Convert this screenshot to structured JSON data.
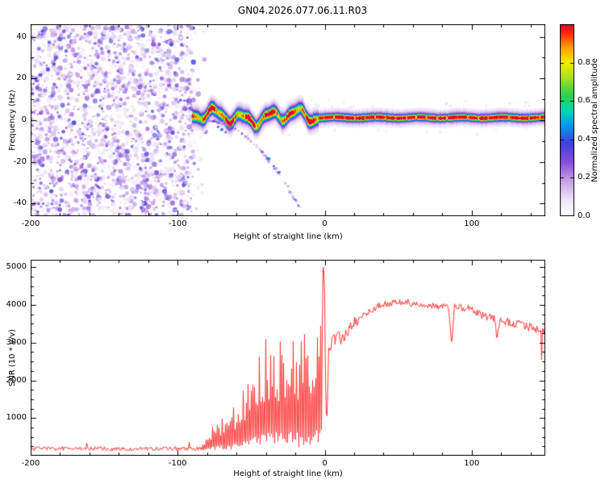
{
  "title": "GN04.2026.077.06.11.R03",
  "chart_data": [
    {
      "type": "heatmap",
      "panel": "spectrogram",
      "xlabel": "Height of straight line (km)",
      "ylabel": "Frequency (Hz)",
      "xlim": [
        -200,
        150
      ],
      "ylim": [
        -46,
        46
      ],
      "xticks": [
        -200,
        -100,
        0,
        100
      ],
      "yticks": [
        -40,
        -20,
        0,
        20,
        40
      ],
      "x_minor_step": 20,
      "y_minor_step": 10,
      "colorbar": {
        "label": "Normalized spectral amplitude",
        "ticks": [
          "0.0",
          "0.2",
          "0.4",
          "0.6",
          "0.8"
        ],
        "tick_values": [
          0,
          0.2,
          0.4,
          0.6,
          0.8
        ],
        "range": [
          0,
          1
        ],
        "colormap_stops": [
          [
            0,
            "#ffffff"
          ],
          [
            0.08,
            "#f0e7f8"
          ],
          [
            0.18,
            "#c9a3e8"
          ],
          [
            0.28,
            "#8a4fd8"
          ],
          [
            0.38,
            "#4040e0"
          ],
          [
            0.48,
            "#00a0e8"
          ],
          [
            0.55,
            "#00d8b0"
          ],
          [
            0.63,
            "#2ed04e"
          ],
          [
            0.72,
            "#a8e020"
          ],
          [
            0.8,
            "#f2ee00"
          ],
          [
            0.88,
            "#ff9d00"
          ],
          [
            0.95,
            "#ff2e00"
          ],
          [
            1,
            "#e0003c"
          ]
        ]
      },
      "features": {
        "noise_region_x_end": -88,
        "carrier_band": {
          "center_hz": 1.5,
          "wiggle_region": [
            -88,
            -4
          ],
          "flat_region": [
            -4,
            150
          ]
        },
        "multipath_chirp": {
          "x_range": [
            -79,
            -17
          ],
          "coeff": -0.0106,
          "x_offset": -80
        },
        "extra_blobs": [
          [
            -38,
            -18.5,
            0.45,
            2.2
          ],
          [
            -31,
            -25,
            0.42,
            1.8
          ],
          [
            -70,
            -4.5,
            0.42,
            2.0
          ],
          [
            -72.5,
            -3.2,
            0.38,
            1.5
          ],
          [
            -67.5,
            -5.8,
            0.36,
            1.4
          ]
        ]
      }
    },
    {
      "type": "line",
      "panel": "snr",
      "xlabel": "Height of straight line (km)",
      "ylabel": "SNR (10 * v/v)",
      "xlim": [
        -200,
        150
      ],
      "ylim": [
        0,
        5200
      ],
      "xticks": [
        -200,
        -100,
        0,
        100
      ],
      "yticks": [
        1000,
        2000,
        3000,
        4000,
        5000
      ],
      "x_minor_step": 20,
      "y_minor_step": 250,
      "line_color": "#ff3333",
      "noise_floor": 180,
      "spiky_range": [
        -84,
        -1.8
      ],
      "profile_anchors": [
        [
          -200,
          180
        ],
        [
          -88,
          180
        ],
        [
          -83,
          320
        ],
        [
          -75,
          900
        ],
        [
          -65,
          1150
        ],
        [
          -55,
          1800
        ],
        [
          -45,
          2600
        ],
        [
          -38,
          3350
        ],
        [
          -32,
          3150
        ],
        [
          -25,
          3250
        ],
        [
          -18,
          3300
        ],
        [
          -12,
          3450
        ],
        [
          -6,
          3500
        ],
        [
          -3,
          3600
        ],
        [
          -1.2,
          5150
        ],
        [
          -0.4,
          4600
        ],
        [
          0.4,
          1400
        ],
        [
          1.2,
          800
        ],
        [
          2.5,
          2850
        ],
        [
          6,
          3050
        ],
        [
          12,
          3150
        ],
        [
          20,
          3500
        ],
        [
          28,
          3800
        ],
        [
          35,
          3950
        ],
        [
          45,
          4050
        ],
        [
          55,
          4080
        ],
        [
          65,
          3980
        ],
        [
          75,
          3960
        ],
        [
          84,
          3960
        ],
        [
          86,
          2950
        ],
        [
          88,
          3960
        ],
        [
          95,
          3930
        ],
        [
          103,
          3800
        ],
        [
          110,
          3680
        ],
        [
          115,
          3650
        ],
        [
          117,
          3150
        ],
        [
          119,
          3600
        ],
        [
          127,
          3520
        ],
        [
          135,
          3450
        ],
        [
          143,
          3380
        ],
        [
          150,
          3320
        ]
      ]
    }
  ]
}
